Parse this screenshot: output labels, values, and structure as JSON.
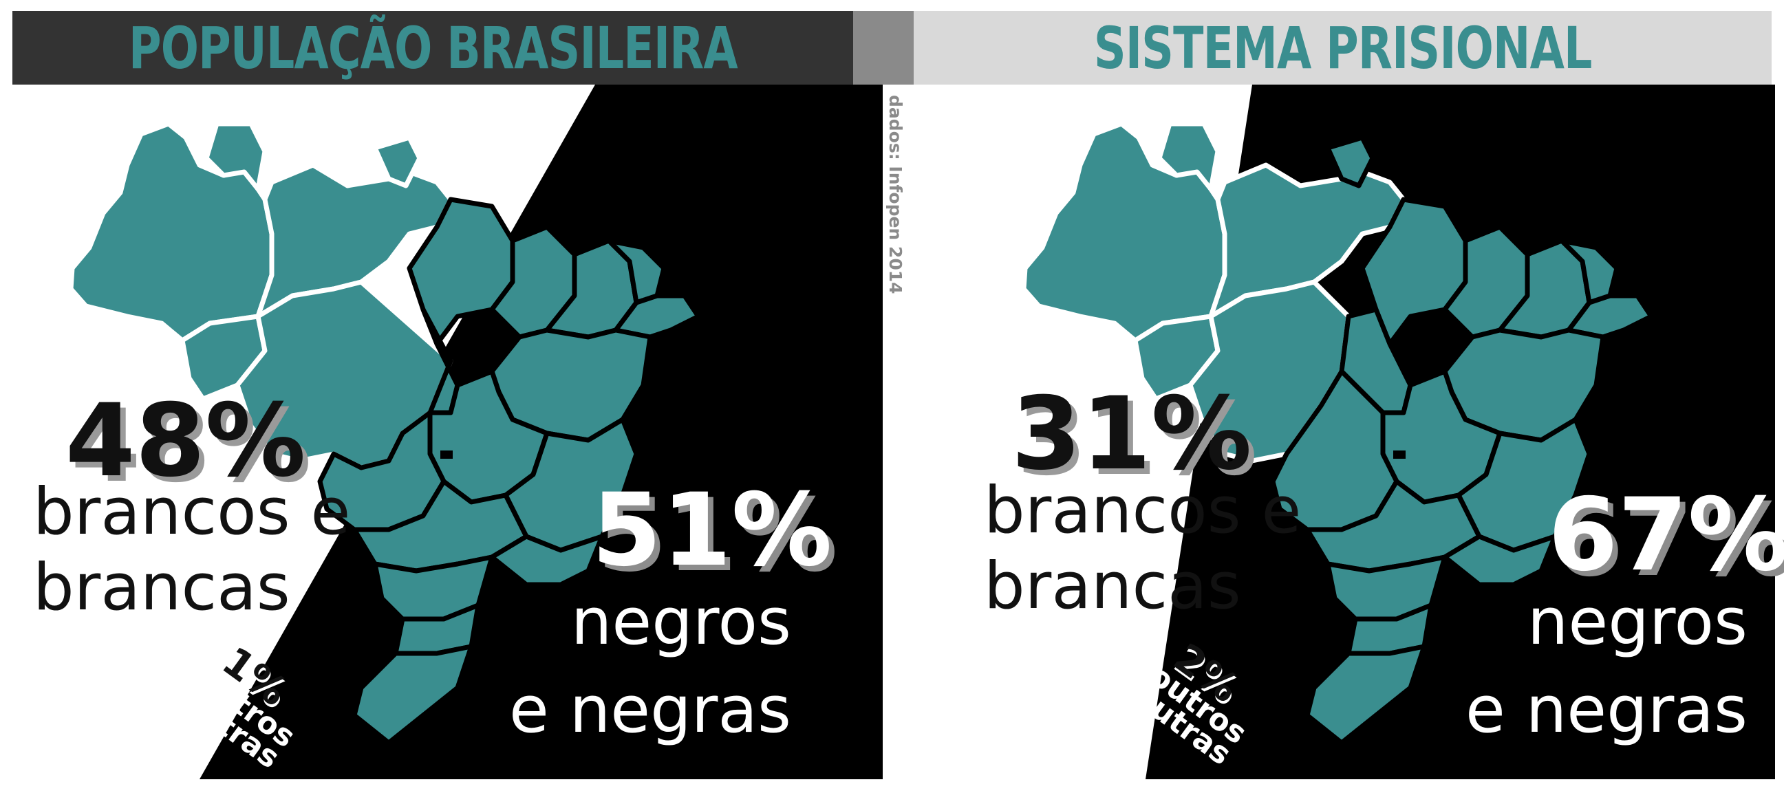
{
  "colors": {
    "teal": "#3a8e8f",
    "dark_header": "#333333",
    "light_header": "#d9d9d9",
    "divider": "#8a8a8a",
    "black": "#000000",
    "white": "#ffffff"
  },
  "icons": {
    "map": "brazil-map-icon"
  },
  "left": {
    "title": "POPULAÇÃO BRASILEIRA",
    "white_pct": "48%",
    "white_label_1": "brancos e",
    "white_label_2": "brancas",
    "black_pct": "51%",
    "black_label_1": "negros",
    "black_label_2": "e negras",
    "other_pct": "1%",
    "other_label_1": "outros",
    "other_label_2": "outras"
  },
  "right": {
    "title": "SISTEMA PRISIONAL",
    "white_pct": "31%",
    "white_label_1": "brancos e",
    "white_label_2": "brancas",
    "black_pct": "67%",
    "black_label_1": "negros",
    "black_label_2": "e negras",
    "other_pct": "2%",
    "other_label_1": "outros",
    "other_label_2": "outras"
  },
  "source": "dados: Infopen 2014"
}
